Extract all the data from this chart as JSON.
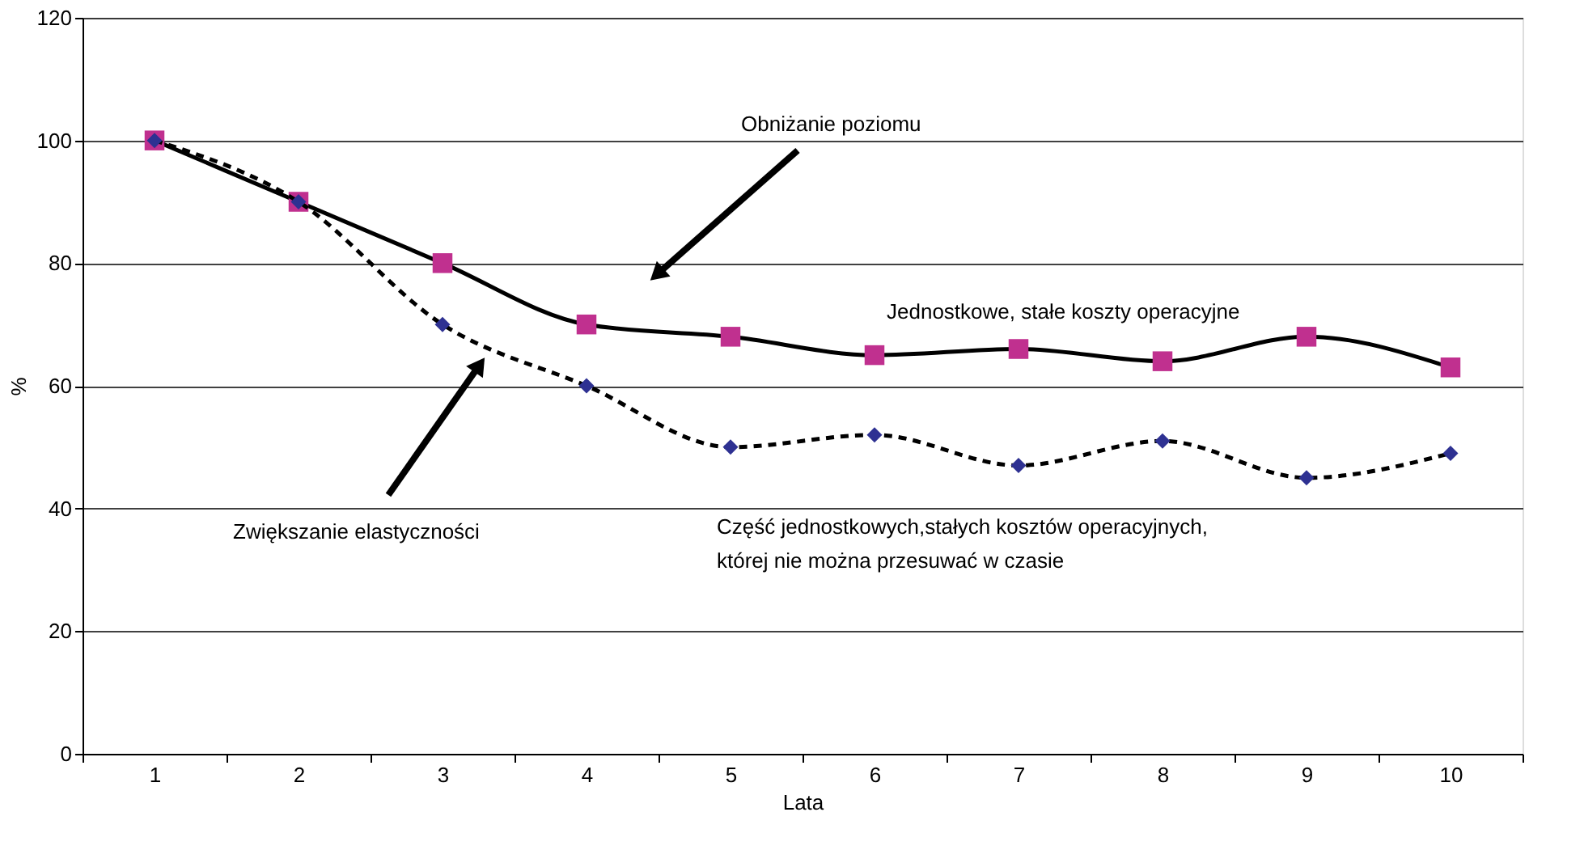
{
  "chart_data": {
    "type": "line",
    "xlabel": "Lata",
    "ylabel": "%",
    "categories": [
      "1",
      "2",
      "3",
      "4",
      "5",
      "6",
      "7",
      "8",
      "9",
      "10"
    ],
    "ylim": [
      0,
      120
    ],
    "yticks": [
      0,
      20,
      40,
      60,
      80,
      100,
      120
    ],
    "grid": "y",
    "series": [
      {
        "name": "Jednostkowe, stałe koszty operacyjne",
        "color": "#c0308f",
        "marker": "square",
        "line_style": "solid",
        "values": [
          100,
          90,
          80,
          70,
          68,
          65,
          66,
          64,
          68,
          63
        ]
      },
      {
        "name": "Część jednostkowych,stałych kosztów operacyjnych, której nie można przesuwać w czasie",
        "color": "#2e3192",
        "marker": "diamond",
        "line_style": "dashed",
        "values": [
          100,
          90,
          70,
          60,
          50,
          52,
          47,
          51,
          45,
          49
        ]
      }
    ],
    "annotations": [
      "Obniżanie poziomu",
      "Zwiększanie elastyczności"
    ]
  }
}
